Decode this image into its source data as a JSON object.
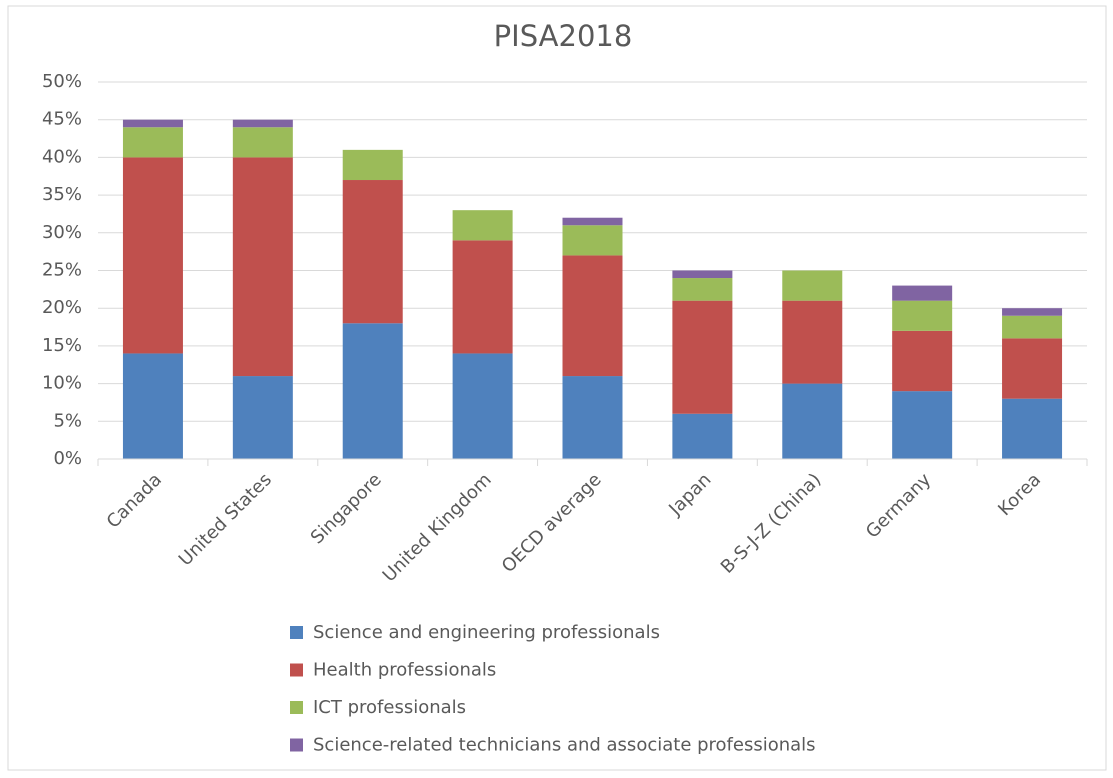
{
  "chart_data": {
    "type": "stacked_bar",
    "title": "PISA2018",
    "categories": [
      "Canada",
      "United States",
      "Singapore",
      "United Kingdom",
      "OECD average",
      "Japan",
      "B-S-J-Z (China)",
      "Germany",
      "Korea"
    ],
    "series": [
      {
        "name": "Science and engineering professionals",
        "color": "#4f81bd",
        "values": [
          14,
          11,
          18,
          14,
          11,
          6,
          10,
          9,
          8
        ]
      },
      {
        "name": "Health professionals",
        "color": "#c0504d",
        "values": [
          26,
          29,
          19,
          15,
          16,
          15,
          11,
          8,
          8
        ]
      },
      {
        "name": "ICT professionals",
        "color": "#9bbb59",
        "values": [
          4,
          4,
          4,
          4,
          4,
          3,
          4,
          4,
          3
        ]
      },
      {
        "name": "Science-related technicians and associate professionals",
        "color": "#8064a2",
        "values": [
          1,
          1,
          0,
          0,
          1,
          1,
          0,
          2,
          1
        ]
      }
    ],
    "ylim": [
      0,
      50
    ],
    "yticks": [
      {
        "value": 0,
        "label": "0%"
      },
      {
        "value": 5,
        "label": "5%"
      },
      {
        "value": 10,
        "label": "10%"
      },
      {
        "value": 15,
        "label": "15%"
      },
      {
        "value": 20,
        "label": "20%"
      },
      {
        "value": 25,
        "label": "25%"
      },
      {
        "value": 30,
        "label": "30%"
      },
      {
        "value": 35,
        "label": "35%"
      },
      {
        "value": 40,
        "label": "40%"
      },
      {
        "value": 45,
        "label": "45%"
      },
      {
        "value": 50,
        "label": "50%"
      }
    ],
    "grid": true,
    "legend": "bottom"
  }
}
